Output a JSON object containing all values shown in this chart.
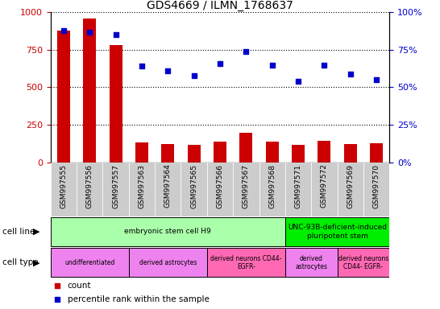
{
  "title": "GDS4669 / ILMN_1768637",
  "samples": [
    "GSM997555",
    "GSM997556",
    "GSM997557",
    "GSM997563",
    "GSM997564",
    "GSM997565",
    "GSM997566",
    "GSM997567",
    "GSM997568",
    "GSM997571",
    "GSM997572",
    "GSM997569",
    "GSM997570"
  ],
  "counts": [
    880,
    960,
    780,
    130,
    120,
    115,
    140,
    195,
    135,
    115,
    145,
    120,
    125
  ],
  "percentiles": [
    88,
    87,
    85,
    64,
    61,
    58,
    66,
    74,
    65,
    54,
    65,
    59,
    55
  ],
  "bar_color": "#cc0000",
  "scatter_color": "#0000cc",
  "ylim_left": [
    0,
    1000
  ],
  "ylim_right": [
    0,
    100
  ],
  "yticks_left": [
    0,
    250,
    500,
    750,
    1000
  ],
  "yticks_right": [
    0,
    25,
    50,
    75,
    100
  ],
  "ytick_labels_right": [
    "0%",
    "25%",
    "50%",
    "75%",
    "100%"
  ],
  "cell_line_groups": [
    {
      "label": "embryonic stem cell H9",
      "start": 0,
      "end": 9,
      "color": "#aaffaa"
    },
    {
      "label": "UNC-93B-deficient-induced\npluripotent stem",
      "start": 9,
      "end": 13,
      "color": "#00ee00"
    }
  ],
  "cell_type_groups": [
    {
      "label": "undifferentiated",
      "start": 0,
      "end": 3,
      "color": "#ee82ee"
    },
    {
      "label": "derived astrocytes",
      "start": 3,
      "end": 6,
      "color": "#ee82ee"
    },
    {
      "label": "derived neurons CD44-\nEGFR-",
      "start": 6,
      "end": 9,
      "color": "#ff69b4"
    },
    {
      "label": "derived\nastrocytes",
      "start": 9,
      "end": 11,
      "color": "#ee82ee"
    },
    {
      "label": "derived neurons\nCD44- EGFR-",
      "start": 11,
      "end": 13,
      "color": "#ff69b4"
    }
  ],
  "legend_count_color": "#cc0000",
  "legend_pct_color": "#0000cc",
  "background_color": "#ffffff",
  "tick_label_color_left": "#cc0000",
  "tick_label_color_right": "#0000cc",
  "xtick_bg_color": "#cccccc",
  "bar_width": 0.5
}
